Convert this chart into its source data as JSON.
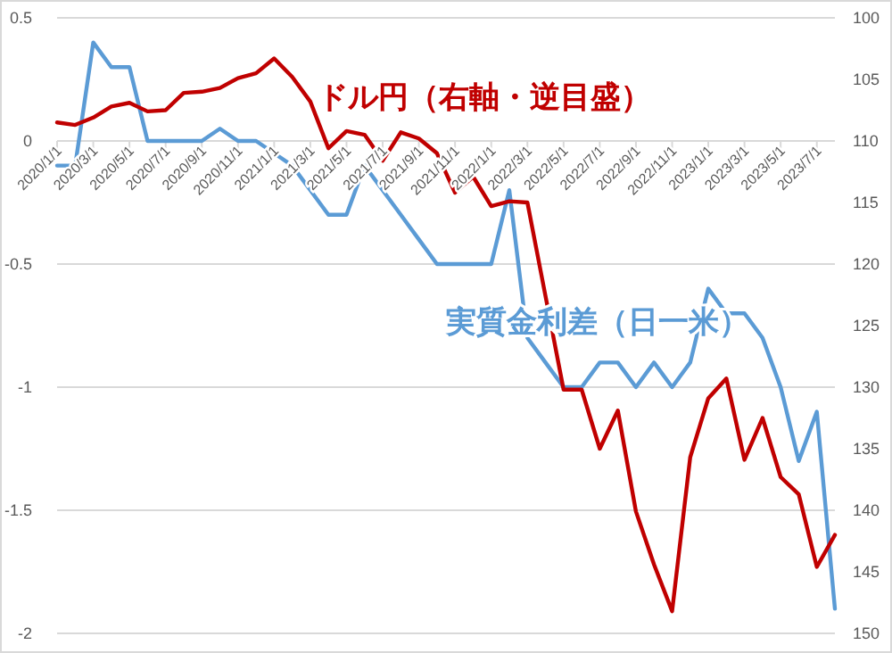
{
  "chart_data": {
    "type": "line",
    "categories": [
      "2020/1/1",
      null,
      "2020/3/1",
      null,
      "2020/5/1",
      null,
      "2020/7/1",
      null,
      "2020/9/1",
      null,
      "2020/11/1",
      null,
      "2021/1/1",
      null,
      "2021/3/1",
      null,
      "2021/5/1",
      null,
      "2021/7/1",
      null,
      "2021/9/1",
      null,
      "2021/11/1",
      null,
      "2022/1/1",
      null,
      "2022/3/1",
      null,
      "2022/5/1",
      null,
      "2022/7/1",
      null,
      "2022/9/1",
      null,
      "2022/11/1",
      null,
      "2023/1/1",
      null,
      "2023/3/1",
      null,
      "2023/5/1",
      null,
      "2023/7/1",
      null
    ],
    "series": [
      {
        "name": "実質金利差（日一米）",
        "color": "#5b9bd5",
        "values": [
          -0.1,
          -0.1,
          0.4,
          0.3,
          0.3,
          0,
          0,
          0,
          0,
          0.05,
          0,
          0,
          -0.05,
          -0.1,
          -0.2,
          -0.3,
          -0.3,
          -0.1,
          -0.2,
          -0.3,
          -0.4,
          -0.5,
          -0.5,
          -0.5,
          -0.5,
          -0.2,
          -0.8,
          -0.9,
          -1.0,
          -1.0,
          -0.9,
          -0.9,
          -1.0,
          -0.9,
          -1.0,
          -0.9,
          -0.6,
          -0.7,
          -0.7,
          -0.8,
          -1.0,
          -1.3,
          -1.1,
          -1.9
        ]
      },
      {
        "name": "ドル円（右軸・逆目盛）",
        "color": "#c00000",
        "axis": "y2",
        "values": [
          108.5,
          108.7,
          108.1,
          107.2,
          106.9,
          107.6,
          107.5,
          106.1,
          106.0,
          105.7,
          104.9,
          104.5,
          103.3,
          104.8,
          106.8,
          110.6,
          109.2,
          109.5,
          111.6,
          109.3,
          109.8,
          111.0,
          114.2,
          112.9,
          115.3,
          114.9,
          115.0,
          122.6,
          130.2,
          130.2,
          135.0,
          131.9,
          140.1,
          144.4,
          148.2,
          135.7,
          130.9,
          129.3,
          135.9,
          132.5,
          137.3,
          138.7,
          144.6,
          142.0
        ]
      }
    ],
    "ylim": [
      -2,
      0.5
    ],
    "yticks": [
      -2,
      -1.5,
      -1,
      -0.5,
      0,
      0.5
    ],
    "y2lim": [
      150,
      100
    ],
    "y2ticks": [
      100,
      105,
      110,
      115,
      120,
      125,
      130,
      135,
      140,
      145,
      150
    ],
    "grid": "y",
    "marker": "none",
    "line_style": "solid"
  }
}
